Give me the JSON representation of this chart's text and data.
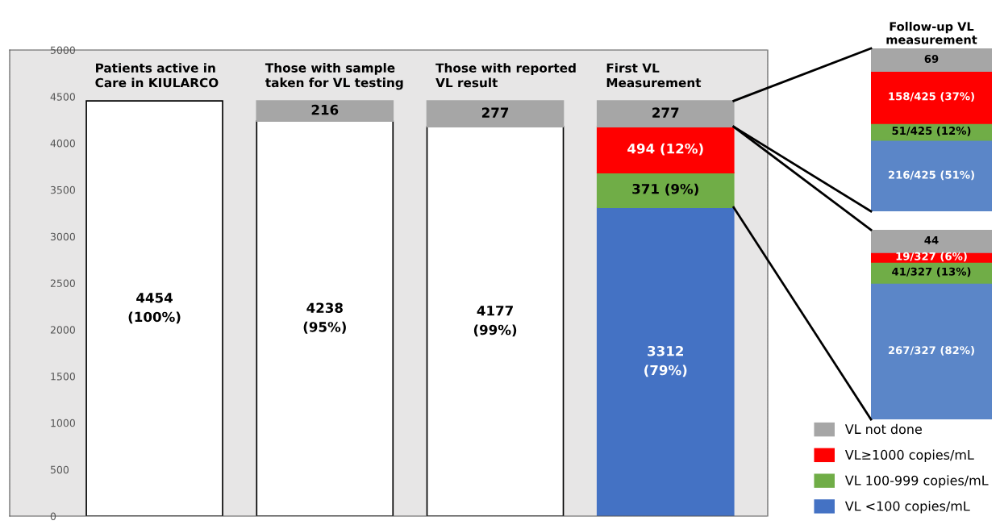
{
  "chart_data": [
    {
      "type": "bar",
      "stacked": true,
      "categories": [
        "Patients active in\nCare in KIULARCO",
        "Those with sample\ntaken for VL testing",
        "Those with reported\nVL result",
        "First VL\nMeasurement"
      ],
      "ylim": [
        0,
        5000
      ],
      "yticks": [
        0,
        500,
        1000,
        1500,
        2000,
        2500,
        3000,
        3500,
        4000,
        4500,
        5000
      ],
      "grid": false,
      "legend": "bottom right",
      "series": [
        {
          "color": "#ffffff",
          "values": [
            4454,
            4238,
            4177,
            null
          ],
          "value_labels": [
            "4454\n(100%)",
            "4238\n(95%)",
            "4177\n(99%)",
            null
          ]
        },
        {
          "name": "VL <100 copies/mL",
          "color": "#4472c4",
          "values": [
            null,
            null,
            null,
            3312
          ],
          "value_labels": [
            null,
            null,
            null,
            "3312\n(79%)"
          ]
        },
        {
          "name": "VL 100-999 copies/mL",
          "color": "#70ad47",
          "values": [
            null,
            null,
            null,
            371
          ],
          "value_labels": [
            null,
            null,
            null,
            "371 (9%)"
          ]
        },
        {
          "name": "VL≥1000 copies/mL",
          "color": "#ff0000",
          "values": [
            null,
            null,
            null,
            494
          ],
          "value_labels": [
            null,
            null,
            null,
            "494 (12%)"
          ]
        },
        {
          "name": "VL not done",
          "color": "#a6a6a6",
          "values": [
            null,
            216,
            277,
            277
          ],
          "value_labels": [
            null,
            "216",
            "277",
            "277"
          ]
        }
      ]
    },
    {
      "type": "bar",
      "stacked": true,
      "title": "Follow-up VL\nmeasurement",
      "categories": [
        null
      ],
      "series": [
        {
          "color": "#5b86c8",
          "values": [
            216
          ],
          "value_labels": [
            "216/425 (51%)"
          ]
        },
        {
          "color": "#70ad47",
          "values": [
            51
          ],
          "value_labels": [
            "51/425 (12%)"
          ]
        },
        {
          "color": "#ff0000",
          "values": [
            158
          ],
          "value_labels": [
            "158/425 (37%)"
          ]
        },
        {
          "color": "#a6a6a6",
          "values": [
            69
          ],
          "value_labels": [
            "69"
          ]
        }
      ]
    },
    {
      "type": "bar",
      "stacked": true,
      "categories": [
        null
      ],
      "series": [
        {
          "color": "#5b86c8",
          "values": [
            267
          ],
          "value_labels": [
            "267/327 (82%)"
          ]
        },
        {
          "color": "#70ad47",
          "values": [
            41
          ],
          "value_labels": [
            "41/327 (13%)"
          ]
        },
        {
          "color": "#ff0000",
          "values": [
            19
          ],
          "value_labels": [
            "19/327 (6%)"
          ]
        },
        {
          "color": "#a6a6a6",
          "values": [
            44
          ],
          "value_labels": [
            "44"
          ]
        }
      ]
    }
  ]
}
